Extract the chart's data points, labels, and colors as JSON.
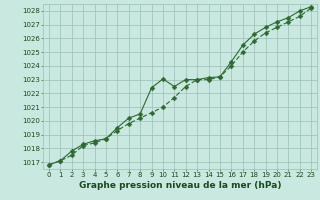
{
  "xlabel": "Graphe pression niveau de la mer (hPa)",
  "ylim": [
    1016.5,
    1028.5
  ],
  "xlim": [
    -0.5,
    23.5
  ],
  "yticks": [
    1017,
    1018,
    1019,
    1020,
    1021,
    1022,
    1023,
    1024,
    1025,
    1026,
    1027,
    1028
  ],
  "xticks": [
    0,
    1,
    2,
    3,
    4,
    5,
    6,
    7,
    8,
    9,
    10,
    11,
    12,
    13,
    14,
    15,
    16,
    17,
    18,
    19,
    20,
    21,
    22,
    23
  ],
  "line1_x": [
    0,
    1,
    2,
    3,
    4,
    5,
    6,
    7,
    8,
    9,
    10,
    11,
    12,
    13,
    14,
    15,
    16,
    17,
    18,
    19,
    20,
    21,
    22,
    23
  ],
  "line1_y": [
    1016.8,
    1017.1,
    1017.8,
    1018.3,
    1018.55,
    1018.7,
    1019.5,
    1020.2,
    1020.5,
    1022.4,
    1023.05,
    1022.5,
    1023.0,
    1023.0,
    1023.15,
    1023.2,
    1024.3,
    1025.5,
    1026.3,
    1026.8,
    1027.2,
    1027.5,
    1028.0,
    1028.3
  ],
  "line2_x": [
    0,
    1,
    2,
    3,
    4,
    5,
    6,
    7,
    8,
    9,
    10,
    11,
    12,
    13,
    14,
    15,
    16,
    17,
    18,
    19,
    20,
    21,
    22,
    23
  ],
  "line2_y": [
    1016.8,
    1017.1,
    1017.5,
    1018.2,
    1018.4,
    1018.7,
    1019.3,
    1019.8,
    1020.2,
    1020.6,
    1021.0,
    1021.7,
    1022.5,
    1023.0,
    1023.0,
    1023.2,
    1024.0,
    1025.0,
    1025.8,
    1026.4,
    1026.8,
    1027.2,
    1027.6,
    1028.2
  ],
  "line_color": "#2d6a2d",
  "bg_color": "#c8e8e0",
  "grid_color": "#9cbcb8",
  "text_color": "#1a4a1a",
  "marker": "D",
  "marker_size": 2.5,
  "line_width": 0.8,
  "font_size_ticks": 5,
  "font_size_xlabel": 6.5
}
